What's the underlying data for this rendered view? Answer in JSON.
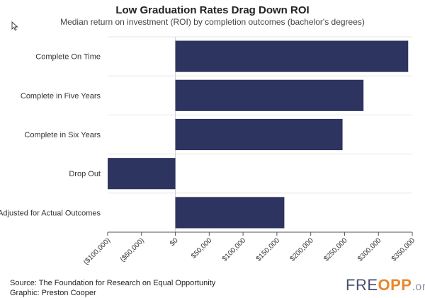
{
  "chart_data": {
    "type": "bar",
    "orientation": "horizontal",
    "title": "Low Graduation Rates Drag Down ROI",
    "subtitle": "Median return on investment (ROI) by completion outcomes (bachelor's degrees)",
    "categories": [
      "Complete On Time",
      "Complete in Five Years",
      "Complete in Six Years",
      "Drop Out",
      "Adjusted for Actual Outcomes"
    ],
    "values": [
      344000,
      278000,
      247000,
      -100000,
      161000
    ],
    "xlim": [
      -100000,
      350000
    ],
    "xticks": [
      -100000,
      -50000,
      0,
      50000,
      100000,
      150000,
      200000,
      250000,
      300000,
      350000
    ],
    "xtick_labels": [
      "($100,000)",
      "($50,000)",
      "$0",
      "$50,000",
      "$100,000",
      "$150,000",
      "$200,000",
      "$250,000",
      "$300,000",
      "$350,000"
    ],
    "xlabel": "",
    "ylabel": "",
    "grid": true,
    "bar_color": "#2d3460",
    "grid_color": "#e6e6e6",
    "axis_color": "#555555"
  },
  "footer": {
    "source": "Source: The Foundation for Research on Equal Opportunity",
    "graphic": "Graphic: Preston Cooper"
  },
  "logo": {
    "left": "FRE",
    "mid": "OPP",
    "ext": ".org"
  },
  "icons": {
    "cursor": "mouse-pointer-icon"
  }
}
